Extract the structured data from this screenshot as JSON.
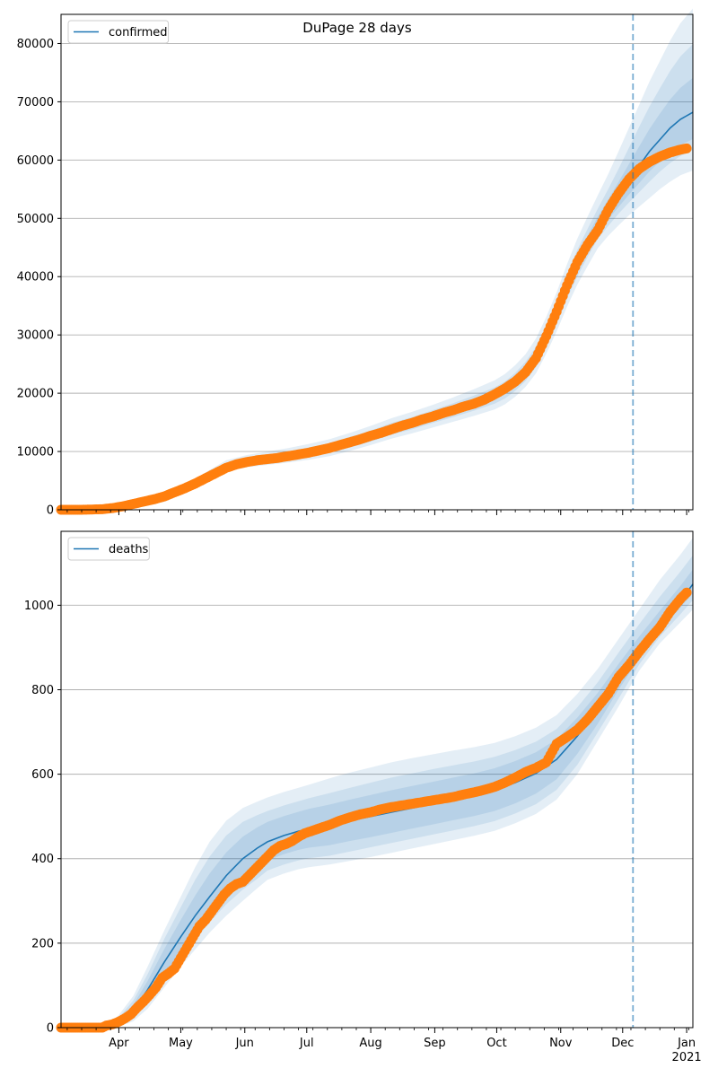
{
  "suptitle": "DuPage 28 days",
  "colors": {
    "line": "#1f77b4",
    "band": "#1f77b4",
    "observed": "#ff7f0e",
    "grid": "#b0b0b0",
    "vline": "#1f77b4"
  },
  "x_axis": {
    "domain_days": [
      0,
      306
    ],
    "month_ticks": [
      {
        "label": "Apr",
        "day": 28
      },
      {
        "label": "May",
        "day": 58
      },
      {
        "label": "Jun",
        "day": 89
      },
      {
        "label": "Jul",
        "day": 119
      },
      {
        "label": "Aug",
        "day": 150
      },
      {
        "label": "Sep",
        "day": 181
      },
      {
        "label": "Oct",
        "day": 211
      },
      {
        "label": "Nov",
        "day": 242
      },
      {
        "label": "Dec",
        "day": 272
      },
      {
        "label": "Jan",
        "day": 303
      }
    ],
    "year_label": "2021",
    "forecast_start_day": 277
  },
  "chart_data": [
    {
      "type": "line",
      "legend": "confirmed",
      "legend_position": "top-left",
      "ylim": [
        0,
        85000
      ],
      "yticks": [
        0,
        10000,
        20000,
        30000,
        40000,
        50000,
        60000,
        70000,
        80000
      ],
      "grid": "y",
      "model_line": {
        "days": [
          0,
          20,
          30,
          40,
          50,
          60,
          70,
          80,
          90,
          100,
          110,
          120,
          130,
          140,
          150,
          160,
          170,
          180,
          190,
          200,
          210,
          215,
          220,
          225,
          230,
          235,
          240,
          245,
          250,
          255,
          260,
          265,
          270,
          275,
          280,
          285,
          290,
          295,
          300,
          306
        ],
        "values": [
          0,
          100,
          300,
          800,
          1800,
          3500,
          5500,
          7500,
          8300,
          8800,
          9300,
          9900,
          10600,
          11600,
          12700,
          13900,
          14900,
          16000,
          17100,
          18300,
          19600,
          20600,
          22000,
          23800,
          26300,
          29800,
          33800,
          38300,
          42300,
          45800,
          49000,
          51500,
          54000,
          56500,
          59000,
          61500,
          63500,
          65500,
          67000,
          68200
        ]
      },
      "bands": [
        {
          "upper": [
            0,
            200,
            500,
            1100,
            2300,
            4200,
            6400,
            8500,
            9400,
            10000,
            10600,
            11300,
            12100,
            13200,
            14400,
            15700,
            16800,
            18000,
            19300,
            20700,
            22200,
            23300,
            24800,
            26700,
            29400,
            33100,
            37300,
            42100,
            46500,
            50300,
            54000,
            57600,
            61500,
            65500,
            69500,
            73500,
            77000,
            80500,
            83500,
            86000
          ],
          "lower": [
            0,
            20,
            150,
            550,
            1350,
            2900,
            4700,
            6600,
            7300,
            7700,
            8100,
            8600,
            9200,
            10100,
            11100,
            12200,
            13100,
            14100,
            15100,
            16100,
            17200,
            18100,
            19400,
            21100,
            23400,
            26800,
            30600,
            34800,
            38600,
            41800,
            44900,
            47000,
            48800,
            50500,
            52000,
            53500,
            55000,
            56300,
            57400,
            58200
          ]
        },
        {
          "upper": [
            0,
            160,
            420,
            980,
            2100,
            3900,
            6000,
            8000,
            8900,
            9500,
            10000,
            10700,
            11400,
            12500,
            13600,
            14900,
            15900,
            17100,
            18300,
            19600,
            21000,
            22000,
            23500,
            25400,
            28000,
            31600,
            35700,
            40400,
            44600,
            48200,
            51700,
            55000,
            58500,
            62100,
            65700,
            69200,
            72300,
            75300,
            77800,
            79900
          ],
          "lower": [
            0,
            45,
            200,
            650,
            1550,
            3100,
            5000,
            7000,
            7700,
            8100,
            8600,
            9100,
            9800,
            10700,
            11700,
            12900,
            13800,
            14900,
            15900,
            17000,
            18200,
            19100,
            20400,
            22100,
            24500,
            27900,
            31800,
            36200,
            40000,
            43400,
            46500,
            48700,
            50800,
            52700,
            54500,
            56300,
            58000,
            59500,
            60700,
            61700
          ]
        },
        {
          "upper": [
            0,
            130,
            360,
            880,
            1950,
            3700,
            5750,
            7750,
            8600,
            9150,
            9650,
            10300,
            11000,
            12000,
            13150,
            14400,
            15400,
            16550,
            17700,
            18950,
            20300,
            21300,
            22750,
            24600,
            27150,
            30700,
            34750,
            39350,
            43450,
            47000,
            50350,
            53250,
            56250,
            59300,
            62350,
            65350,
            67950,
            70400,
            72400,
            74100
          ],
          "lower": [
            0,
            70,
            240,
            720,
            1650,
            3300,
            5250,
            7250,
            8000,
            8450,
            8950,
            9500,
            10200,
            11200,
            12250,
            13400,
            14400,
            15450,
            16500,
            17650,
            18900,
            19900,
            21250,
            23000,
            25450,
            28900,
            32850,
            37250,
            41150,
            44600,
            47650,
            49850,
            51950,
            54050,
            56050,
            58050,
            59750,
            61350,
            62600,
            63600
          ]
        }
      ],
      "observed": {
        "days": [
          0,
          10,
          20,
          25,
          30,
          35,
          40,
          45,
          50,
          55,
          60,
          65,
          70,
          75,
          80,
          85,
          90,
          95,
          100,
          105,
          110,
          115,
          120,
          125,
          130,
          135,
          140,
          145,
          150,
          155,
          160,
          165,
          170,
          175,
          180,
          185,
          190,
          195,
          200,
          205,
          210,
          215,
          220,
          225,
          230,
          235,
          240,
          245,
          250,
          255,
          260,
          265,
          270,
          275,
          280,
          285,
          290,
          295,
          300,
          303
        ],
        "values": [
          0,
          0,
          100,
          300,
          600,
          1000,
          1400,
          1800,
          2300,
          3000,
          3700,
          4500,
          5400,
          6300,
          7200,
          7800,
          8200,
          8500,
          8700,
          8900,
          9200,
          9500,
          9800,
          10200,
          10600,
          11100,
          11600,
          12100,
          12700,
          13200,
          13800,
          14400,
          14900,
          15500,
          16000,
          16600,
          17100,
          17700,
          18200,
          18900,
          19800,
          20800,
          22000,
          23600,
          26000,
          29800,
          34000,
          38500,
          42500,
          45500,
          48000,
          51500,
          54300,
          56700,
          58500,
          59700,
          60600,
          61300,
          61800,
          62000
        ]
      }
    },
    {
      "type": "line",
      "legend": "deaths",
      "legend_position": "top-left",
      "ylim": [
        0,
        1175
      ],
      "yticks": [
        0,
        200,
        400,
        600,
        800,
        1000
      ],
      "grid": "y",
      "model_line": {
        "days": [
          0,
          22,
          28,
          35,
          42,
          50,
          58,
          65,
          72,
          80,
          88,
          95,
          100,
          108,
          115,
          120,
          130,
          140,
          150,
          160,
          170,
          180,
          190,
          200,
          210,
          220,
          230,
          240,
          250,
          260,
          270,
          280,
          290,
          300,
          306
        ],
        "values": [
          0,
          0,
          12,
          40,
          90,
          155,
          215,
          265,
          310,
          360,
          400,
          425,
          440,
          455,
          465,
          470,
          478,
          490,
          500,
          510,
          520,
          530,
          540,
          550,
          562,
          580,
          602,
          635,
          690,
          755,
          825,
          890,
          950,
          1010,
          1050
        ]
      },
      "bands": [
        {
          "upper": [
            0,
            5,
            30,
            75,
            145,
            230,
            310,
            380,
            440,
            490,
            520,
            535,
            545,
            558,
            568,
            575,
            590,
            604,
            616,
            628,
            638,
            647,
            656,
            664,
            674,
            690,
            710,
            740,
            790,
            850,
            920,
            990,
            1060,
            1120,
            1160
          ],
          "lower": [
            0,
            0,
            2,
            15,
            45,
            95,
            145,
            185,
            225,
            265,
            300,
            330,
            350,
            365,
            375,
            380,
            386,
            395,
            404,
            414,
            424,
            434,
            444,
            454,
            466,
            484,
            506,
            540,
            600,
            680,
            760,
            845,
            910,
            960,
            990
          ]
        },
        {
          "upper": [
            0,
            3,
            24,
            64,
            127,
            210,
            285,
            350,
            405,
            455,
            487,
            503,
            513,
            526,
            536,
            543,
            555,
            568,
            580,
            592,
            602,
            612,
            621,
            630,
            641,
            657,
            677,
            707,
            758,
            818,
            888,
            955,
            1020,
            1080,
            1118
          ],
          "lower": [
            0,
            0,
            5,
            22,
            58,
            112,
            165,
            207,
            250,
            292,
            327,
            352,
            372,
            386,
            396,
            401,
            407,
            417,
            427,
            437,
            447,
            457,
            467,
            477,
            489,
            507,
            529,
            563,
            622,
            700,
            779,
            860,
            926,
            979,
            1012
          ]
        },
        {
          "upper": [
            0,
            2,
            19,
            54,
            111,
            186,
            255,
            313,
            365,
            415,
            452,
            474,
            487,
            501,
            511,
            518,
            528,
            540,
            551,
            562,
            572,
            582,
            592,
            602,
            614,
            631,
            652,
            683,
            734,
            793,
            861,
            926,
            987,
            1046,
            1085
          ],
          "lower": [
            0,
            0,
            7,
            28,
            69,
            126,
            182,
            227,
            272,
            316,
            353,
            378,
            396,
            411,
            421,
            426,
            432,
            442,
            451,
            461,
            471,
            481,
            491,
            501,
            513,
            531,
            554,
            588,
            648,
            720,
            800,
            874,
            939,
            995,
            1028
          ]
        }
      ],
      "observed": {
        "days": [
          0,
          10,
          20,
          22,
          25,
          28,
          31,
          34,
          37,
          40,
          43,
          46,
          49,
          52,
          55,
          58,
          61,
          64,
          67,
          70,
          73,
          76,
          79,
          82,
          85,
          88,
          91,
          94,
          97,
          100,
          103,
          106,
          109,
          112,
          115,
          118,
          121,
          124,
          127,
          130,
          135,
          140,
          145,
          150,
          155,
          160,
          165,
          170,
          175,
          180,
          185,
          190,
          195,
          200,
          205,
          210,
          215,
          220,
          225,
          230,
          235,
          240,
          245,
          250,
          255,
          260,
          265,
          270,
          275,
          280,
          285,
          290,
          295,
          300,
          303
        ],
        "values": [
          0,
          0,
          0,
          5,
          8,
          14,
          22,
          32,
          48,
          62,
          78,
          95,
          118,
          128,
          140,
          165,
          190,
          215,
          240,
          255,
          275,
          295,
          315,
          330,
          340,
          345,
          360,
          375,
          390,
          405,
          420,
          430,
          435,
          442,
          452,
          460,
          465,
          470,
          475,
          480,
          490,
          498,
          505,
          510,
          517,
          522,
          526,
          530,
          534,
          538,
          542,
          546,
          552,
          557,
          563,
          570,
          580,
          592,
          605,
          615,
          628,
          672,
          688,
          705,
          730,
          760,
          790,
          830,
          858,
          890,
          920,
          948,
          985,
          1015,
          1030
        ]
      }
    }
  ]
}
